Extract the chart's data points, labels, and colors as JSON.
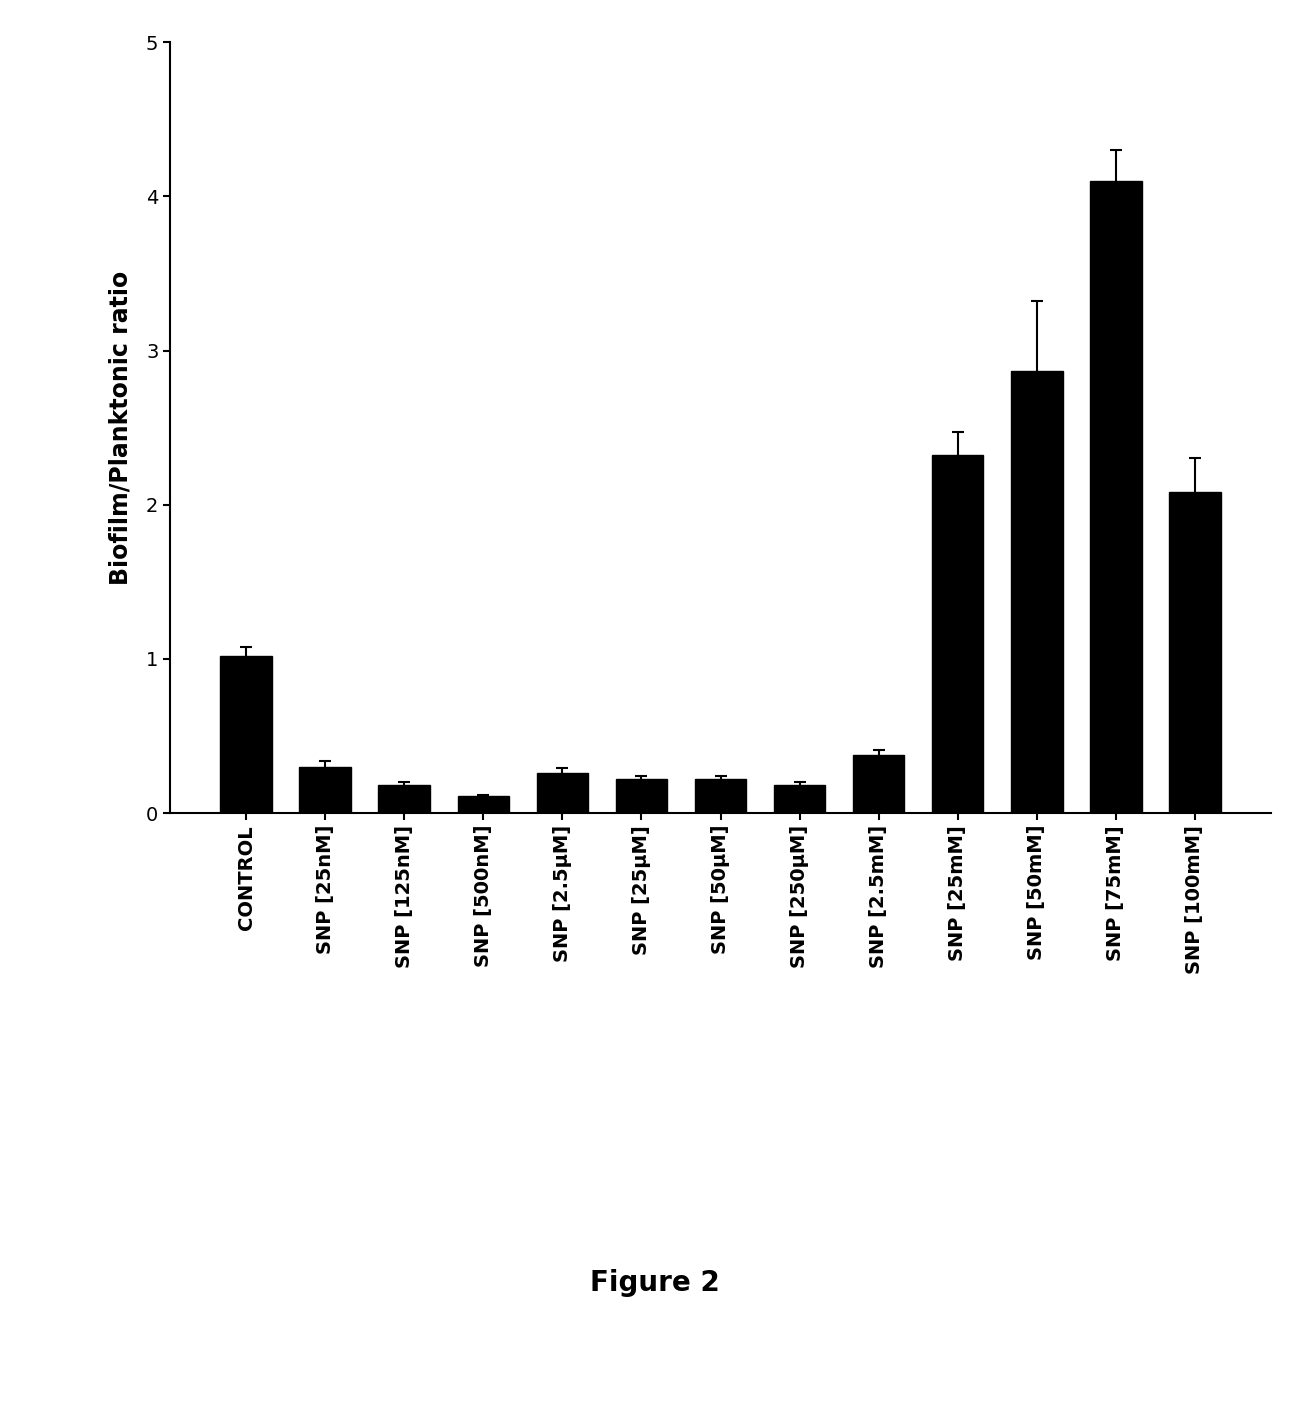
{
  "categories": [
    "CONTROL",
    "SNP [25nM]",
    "SNP [125nM]",
    "SNP [500nM]",
    "SNP [2.5μM]",
    "SNP [25μM]",
    "SNP [50μM]",
    "SNP [250μM]",
    "SNP [2.5mM]",
    "SNP [25mM]",
    "SNP [50mM]",
    "SNP [75mM]",
    "SNP [100mM]"
  ],
  "values": [
    1.02,
    0.3,
    0.18,
    0.11,
    0.26,
    0.22,
    0.22,
    0.18,
    0.38,
    2.32,
    2.87,
    4.1,
    2.08
  ],
  "errors": [
    0.06,
    0.04,
    0.02,
    0.01,
    0.03,
    0.02,
    0.02,
    0.02,
    0.03,
    0.15,
    0.45,
    0.2,
    0.22
  ],
  "bar_color": "#000000",
  "background_color": "#ffffff",
  "ylabel": "Biofilm/Planktonic ratio",
  "ylim": [
    0,
    5
  ],
  "yticks": [
    0,
    1,
    2,
    3,
    4,
    5
  ],
  "figure_label": "Figure 2",
  "figure_label_fontsize": 20,
  "ylabel_fontsize": 17,
  "tick_fontsize": 14,
  "bar_width": 0.65,
  "ecolor": "#000000",
  "capsize": 4
}
